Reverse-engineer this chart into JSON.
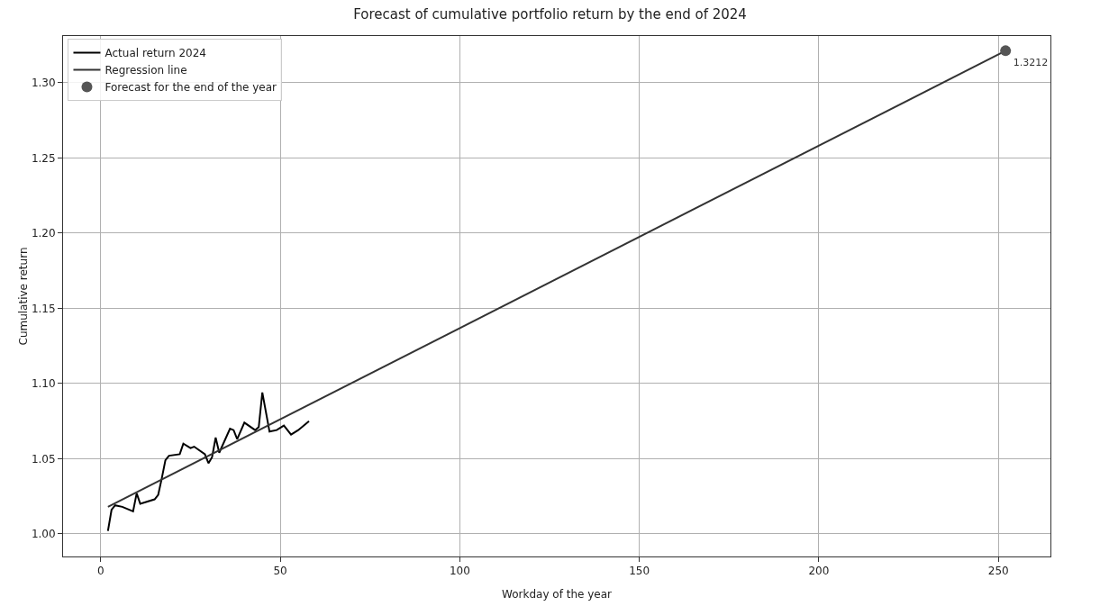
{
  "chart_data": {
    "type": "line",
    "title": "Forecast of cumulative portfolio return by the end of 2024",
    "xlabel": "Workday of the year",
    "ylabel": "Cumulative return",
    "xlim": [
      -10.5,
      264.5
    ],
    "xticks": [
      0,
      50,
      100,
      150,
      200,
      250
    ],
    "ylim": [
      0.985,
      1.331
    ],
    "yticks": [
      {
        "value": 1.0,
        "label": "1.00"
      },
      {
        "value": 1.05,
        "label": "1.05"
      },
      {
        "value": 1.1,
        "label": "1.10"
      },
      {
        "value": 1.15,
        "label": "1.15"
      },
      {
        "value": 1.2,
        "label": "1.20"
      },
      {
        "value": 1.25,
        "label": "1.25"
      },
      {
        "value": 1.3,
        "label": "1.30"
      }
    ],
    "grid": true,
    "legend": "top left",
    "series": [
      {
        "name": "Actual return 2024",
        "color": "#000000",
        "x": [
          2,
          3,
          4,
          6,
          9,
          10,
          11,
          15,
          16,
          17,
          18,
          19,
          22,
          23,
          25,
          26,
          29,
          30,
          31,
          32,
          33,
          36,
          37,
          38,
          40,
          43,
          44,
          45,
          47,
          49,
          51,
          53,
          55,
          58
        ],
        "values": [
          1.002,
          1.016,
          1.019,
          1.018,
          1.015,
          1.027,
          1.02,
          1.023,
          1.026,
          1.037,
          1.049,
          1.052,
          1.053,
          1.06,
          1.057,
          1.058,
          1.053,
          1.047,
          1.051,
          1.064,
          1.054,
          1.07,
          1.069,
          1.063,
          1.074,
          1.069,
          1.071,
          1.094,
          1.068,
          1.069,
          1.072,
          1.066,
          1.069,
          1.075
        ]
      },
      {
        "name": "Regression line",
        "color": "#333333",
        "x": [
          2,
          252
        ],
        "values": [
          1.018,
          1.3212
        ]
      },
      {
        "name": "Forecast for the end of the year",
        "type": "scatter",
        "marker": "circle",
        "color": "#555555",
        "x": [
          252
        ],
        "values": [
          1.3212
        ],
        "value_labels": [
          "1.3212"
        ]
      }
    ]
  }
}
